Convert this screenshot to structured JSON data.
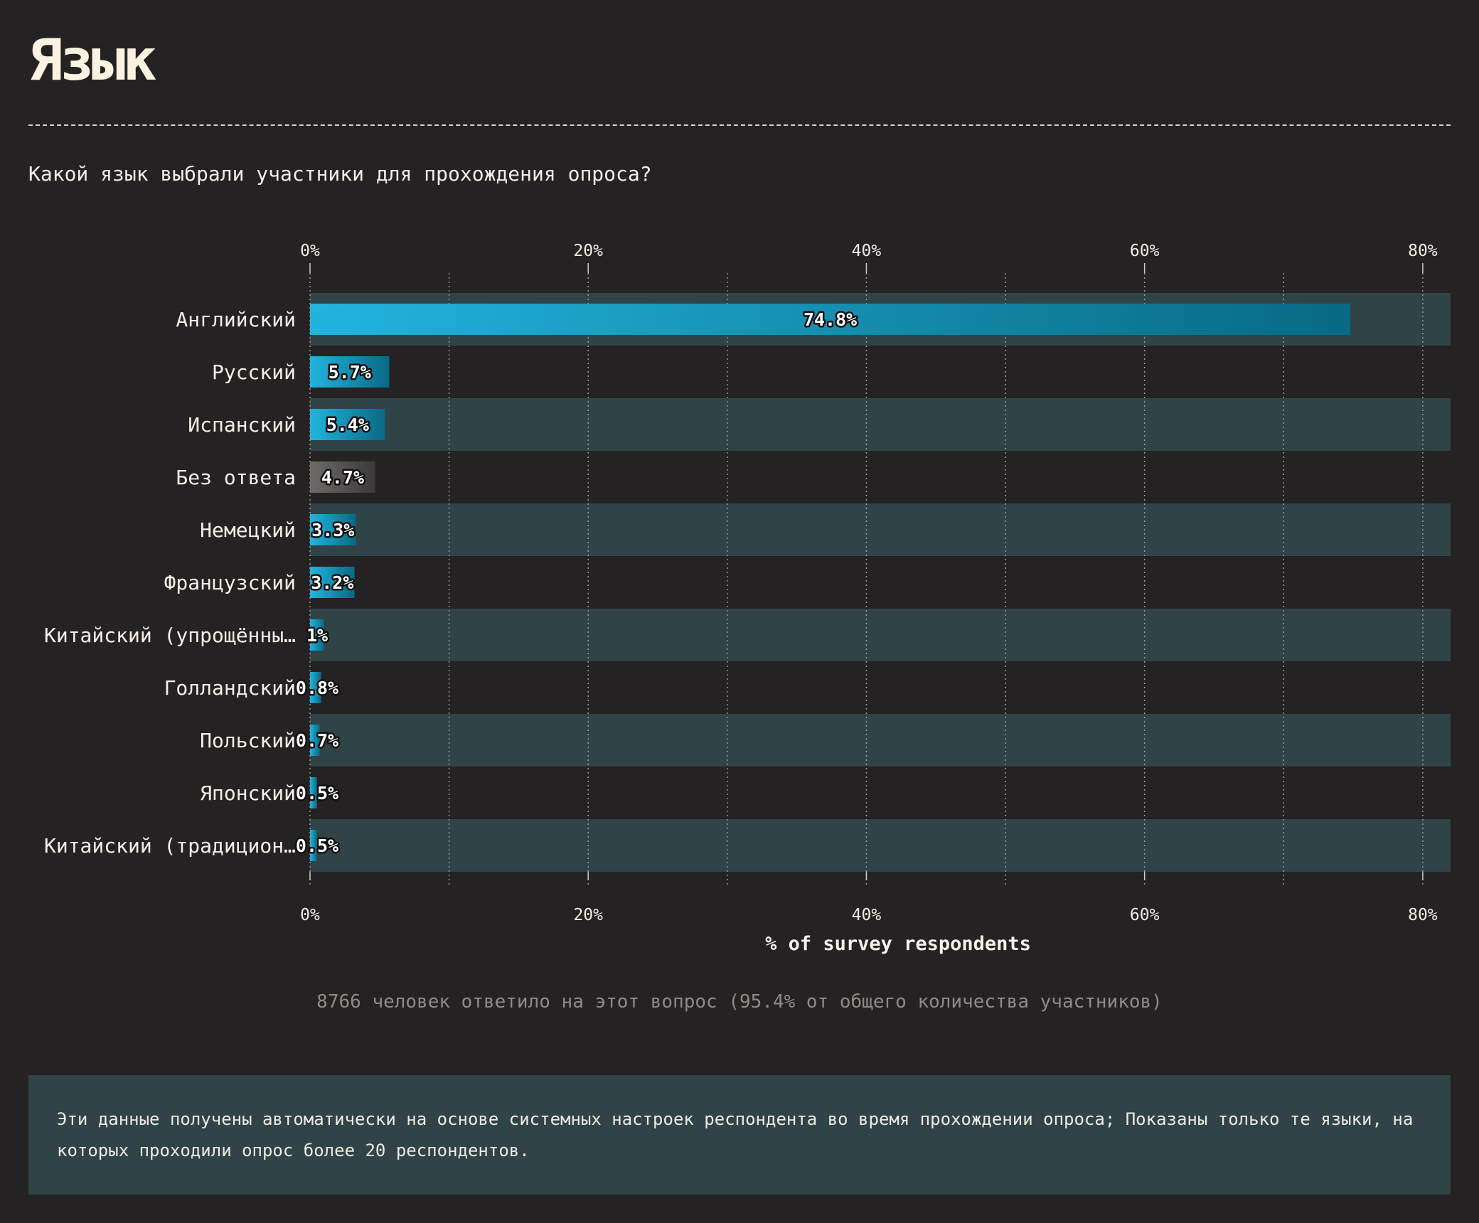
{
  "header": {
    "title": "Язык",
    "question": "Какой язык выбрали участники для прохождения опроса?"
  },
  "chart_data": {
    "type": "bar",
    "orientation": "horizontal",
    "categories": [
      "Английский",
      "Русский",
      "Испанский",
      "Без ответа",
      "Немецкий",
      "Французский",
      "Китайский (упрощённы…",
      "Голландский",
      "Польский",
      "Японский",
      "Китайский (традицион…"
    ],
    "values": [
      74.8,
      5.7,
      5.4,
      4.7,
      3.3,
      3.2,
      1,
      0.8,
      0.7,
      0.5,
      0.5
    ],
    "value_labels": [
      "74.8%",
      "5.7%",
      "5.4%",
      "4.7%",
      "3.3%",
      "3.2%",
      "1%",
      "0.8%",
      "0.7%",
      "0.5%",
      "0.5%"
    ],
    "highlight_neutral": "Без ответа",
    "xlabel": "% of survey respondents",
    "xlim": [
      0,
      82
    ],
    "ticks": [
      0,
      20,
      40,
      60,
      80
    ],
    "tick_labels": [
      "0%",
      "20%",
      "40%",
      "60%",
      "80%"
    ],
    "minor_grid": [
      10,
      30,
      50,
      70
    ],
    "grid": true,
    "legend": "none",
    "colors": {
      "bar_start": "#22b4de",
      "bar_end": "#086984",
      "neutral_start": "#6e6b69",
      "neutral_end": "#3b3838",
      "row_band": "#304347",
      "background": "#252223"
    }
  },
  "footer": {
    "respondents": "8766 человек ответило на этот вопрос (95.4% от общего количества участников)",
    "note": "Эти данные получены автоматически на основе системных настроек респондента во время прохождении опроса; Показаны только те языки, на которых проходили опрос более 20 респондентов."
  }
}
